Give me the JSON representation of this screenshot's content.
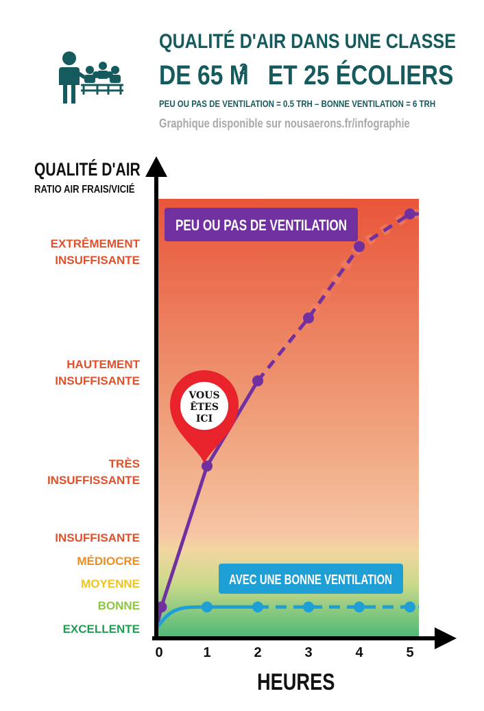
{
  "header": {
    "title_line1": "QUALITÉ D'AIR DANS UNE CLASSE",
    "title_line2": "DE 65 M",
    "title_sup": "2",
    "title_line2_rest": " ET 25 ÉCOLIERS",
    "subtitle": "PEU OU PAS DE VENTILATION = 0.5 TRH – BONNE VENTILATION = 6 TRH",
    "source": "Graphique disponible sur nousaerons.fr/infographie",
    "icon": "teacher-and-students-icon"
  },
  "colors": {
    "title": "#155a5c",
    "poor_series": "#7030a0",
    "good_series": "#1ea0d7",
    "gradient_top": "#e8553a",
    "gradient_mid": "#f0a680",
    "gradient_bottom": "#3cb371",
    "pin": "#e8232c"
  },
  "marker": {
    "text": [
      "VOUS",
      "ÊTES",
      "ICI"
    ]
  },
  "chart_data": {
    "type": "line",
    "title": "QUALITÉ D'AIR DANS UNE CLASSE DE 65 M2 ET 25 ÉCOLIERS",
    "ylabel": "QUALITÉ D'AIR",
    "ylabel_sub": "RATIO AIR FRAIS/VICIÉ",
    "xlabel": "HEURES",
    "x_ticks": [
      0,
      1,
      2,
      3,
      4,
      5
    ],
    "xlim": [
      0,
      5.1
    ],
    "y_levels": [
      {
        "label": [
          "EXCELLENTE"
        ],
        "color": "#1e9e50",
        "value": 0.0
      },
      {
        "label": [
          "BONNE"
        ],
        "color": "#8cc63f",
        "value": 0.75
      },
      {
        "label": [
          "MOYENNE"
        ],
        "color": "#f0c419",
        "value": 1.5
      },
      {
        "label": [
          "MÉDIOCRE"
        ],
        "color": "#f08c1e",
        "value": 2.25
      },
      {
        "label": [
          "INSUFFISANTE"
        ],
        "color": "#e0502a",
        "value": 3.0
      },
      {
        "label": [
          "TRÈS",
          "INSUFFISSANTE"
        ],
        "color": "#e0502a",
        "value": 5.0
      },
      {
        "label": [
          "HAUTEMENT",
          "INSUFFISANTE"
        ],
        "color": "#e0502a",
        "value": 8.5
      },
      {
        "label": [
          "EXTRÊMEMENT",
          "INSUFFISANTE"
        ],
        "color": "#e0502a",
        "value": 12.5
      }
    ],
    "series": [
      {
        "name": "PEU OU PAS DE VENTILATION",
        "x": [
          0.1,
          1,
          2,
          3,
          4,
          5
        ],
        "y": [
          0.7,
          5.2,
          8.2,
          10.3,
          12.7,
          14.0
        ],
        "solid_until_x": 2
      },
      {
        "name": "AVEC UNE BONNE VENTILATION",
        "x": [
          1,
          2,
          3,
          4,
          5
        ],
        "y": [
          0.7,
          0.7,
          0.7,
          0.7,
          0.7
        ],
        "solid_until_x": 2
      }
    ],
    "legend": "labels placed inside plot area"
  }
}
